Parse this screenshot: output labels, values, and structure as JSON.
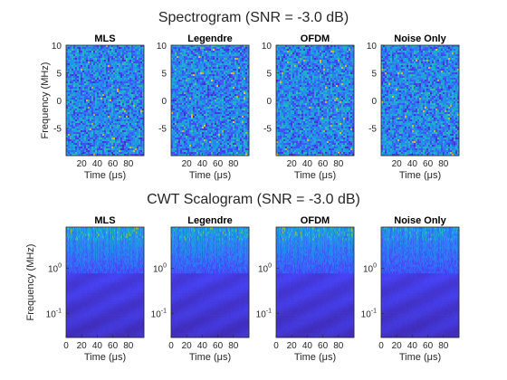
{
  "figure": {
    "spectrogram_title": "Spectrogram (SNR = -3.0 dB)",
    "scalogram_title": "CWT Scalogram (SNR = -3.0 dB)"
  },
  "colormap": [
    "#3e26a8",
    "#4743f8",
    "#2c7ff3",
    "#1aa7d9",
    "#35c0ab",
    "#a5be39",
    "#f2b53c",
    "#f9fb15"
  ],
  "chart_data": [
    {
      "type": "heatmap",
      "variant": "spectrogram",
      "title": "MLS",
      "xlabel": "Time (μs)",
      "ylabel": "Frequency (MHz)",
      "xlim": [
        0,
        100
      ],
      "ylim": [
        -10,
        10
      ],
      "xticks": [
        20,
        40,
        60,
        80
      ],
      "yticks": [
        10,
        5,
        0,
        -5
      ],
      "intensity": 0.55
    },
    {
      "type": "heatmap",
      "variant": "spectrogram",
      "title": "Legendre",
      "xlabel": "Time (μs)",
      "ylabel": "",
      "xlim": [
        0,
        100
      ],
      "ylim": [
        -10,
        10
      ],
      "xticks": [
        20,
        40,
        60,
        80
      ],
      "yticks": [
        10,
        5,
        0,
        -5
      ],
      "intensity": 0.7
    },
    {
      "type": "heatmap",
      "variant": "spectrogram",
      "title": "OFDM",
      "xlabel": "Time (μs)",
      "ylabel": "",
      "xlim": [
        0,
        100
      ],
      "ylim": [
        -10,
        10
      ],
      "xticks": [
        20,
        40,
        60,
        80
      ],
      "yticks": [
        10,
        5,
        0,
        -5
      ],
      "intensity": 0.58
    },
    {
      "type": "heatmap",
      "variant": "spectrogram",
      "title": "Noise Only",
      "xlabel": "Time (μs)",
      "ylabel": "",
      "xlim": [
        0,
        100
      ],
      "ylim": [
        -10,
        10
      ],
      "xticks": [
        20,
        40,
        60,
        80
      ],
      "yticks": [
        10,
        5,
        0,
        -5
      ],
      "intensity": 0.55
    },
    {
      "type": "heatmap",
      "variant": "scalogram",
      "title": "MLS",
      "xlabel": "Time (μs)",
      "ylabel": "Frequency (MHz)",
      "xlim": [
        0,
        100
      ],
      "ylim": [
        0.03,
        8
      ],
      "yscale": "log",
      "xticks": [
        0,
        20,
        40,
        60,
        80
      ],
      "yticks": [
        1,
        0.1
      ],
      "intensity": 0.75
    },
    {
      "type": "heatmap",
      "variant": "scalogram",
      "title": "Legendre",
      "xlabel": "Time (μs)",
      "ylabel": "",
      "xlim": [
        0,
        100
      ],
      "ylim": [
        0.03,
        8
      ],
      "yscale": "log",
      "xticks": [
        0,
        20,
        40,
        60,
        80
      ],
      "yticks": [
        1,
        0.1
      ],
      "intensity": 0.7
    },
    {
      "type": "heatmap",
      "variant": "scalogram",
      "title": "OFDM",
      "xlabel": "Time (μs)",
      "ylabel": "",
      "xlim": [
        0,
        100
      ],
      "ylim": [
        0.03,
        8
      ],
      "yscale": "log",
      "xticks": [
        0,
        20,
        40,
        60,
        80
      ],
      "yticks": [
        1,
        0.1
      ],
      "intensity": 0.7
    },
    {
      "type": "heatmap",
      "variant": "scalogram",
      "title": "Noise Only",
      "xlabel": "Time (μs)",
      "ylabel": "",
      "xlim": [
        0,
        100
      ],
      "ylim": [
        0.03,
        8
      ],
      "yscale": "log",
      "xticks": [
        0,
        20,
        40,
        60,
        80
      ],
      "yticks": [
        1,
        0.1
      ],
      "intensity": 0.55
    }
  ]
}
